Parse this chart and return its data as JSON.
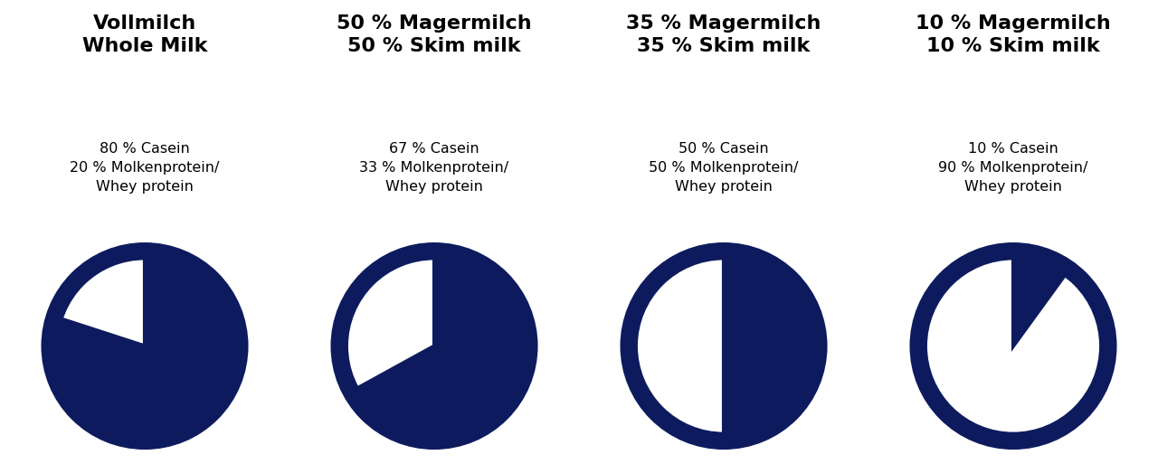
{
  "charts": [
    {
      "title_line1": "Vollmilch",
      "title_line2": "Whole Milk",
      "casein_pct": 80,
      "whey_pct": 20,
      "label_casein": "80 % Casein",
      "label_whey": "20 % Molkenprotein/\nWhey protein"
    },
    {
      "title_line1": "50 % Magermilch",
      "title_line2": "50 % Skim milk",
      "casein_pct": 67,
      "whey_pct": 33,
      "label_casein": "67 % Casein",
      "label_whey": "33 % Molkenprotein/\nWhey protein"
    },
    {
      "title_line1": "35 % Magermilch",
      "title_line2": "35 % Skim milk",
      "casein_pct": 50,
      "whey_pct": 50,
      "label_casein": "50 % Casein",
      "label_whey": "50 % Molkenprotein/\nWhey protein"
    },
    {
      "title_line1": "10 % Magermilch",
      "title_line2": "10 % Skim milk",
      "casein_pct": 10,
      "whey_pct": 90,
      "label_casein": "10 % Casein",
      "label_whey": "90 % Molkenprotein/\nWhey protein"
    }
  ],
  "navy_color": "#0d1b5e",
  "white_color": "#ffffff",
  "background_color": "#ffffff",
  "title_fontsize": 16,
  "subtitle_fontsize": 11.5,
  "pie_linewidth": 3
}
